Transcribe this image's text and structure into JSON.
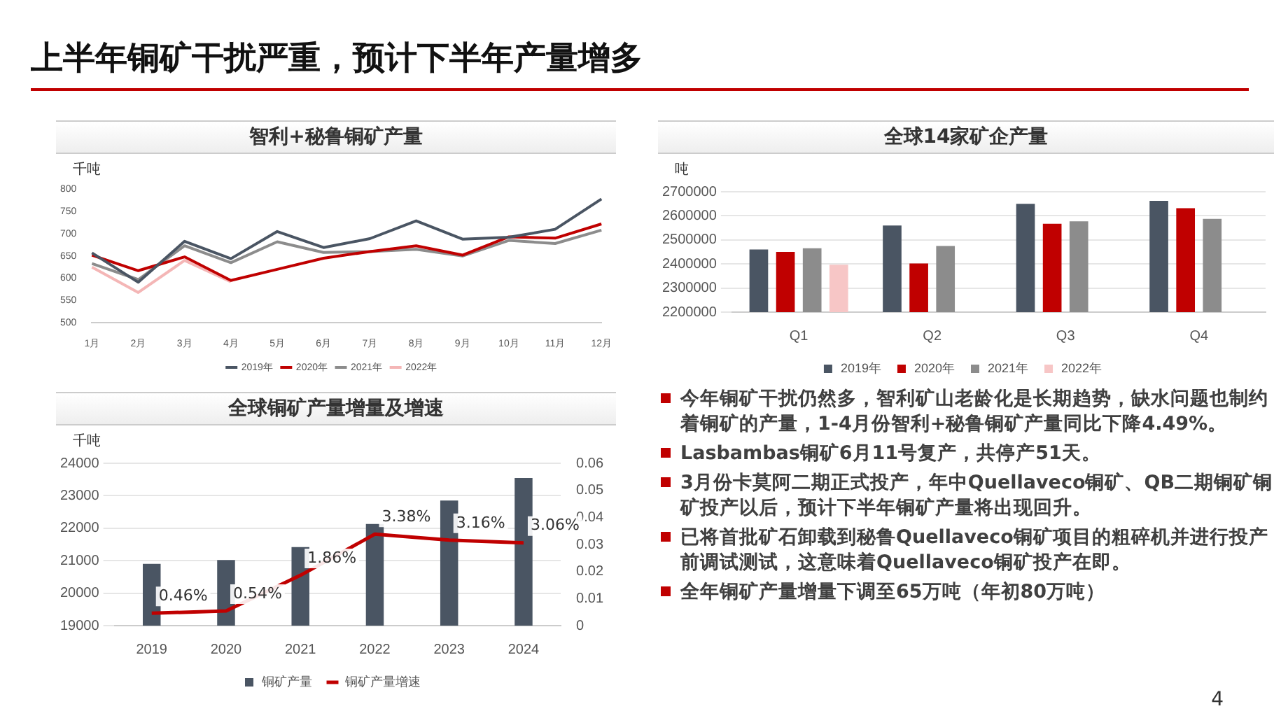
{
  "chart_data": [
    {
      "type": "line",
      "title": "智利+秘鲁铜矿产量",
      "ylabel": "千吨",
      "categories": [
        "1月",
        "2月",
        "3月",
        "4月",
        "5月",
        "6月",
        "7月",
        "8月",
        "9月",
        "10月",
        "11月",
        "12月"
      ],
      "series": [
        {
          "name": "2019年",
          "color": "#4a5563",
          "values": [
            657,
            591,
            683,
            644,
            705,
            669,
            689,
            729,
            688,
            692,
            710,
            778
          ]
        },
        {
          "name": "2020年",
          "color": "#c00000",
          "values": [
            652,
            617,
            648,
            595,
            620,
            645,
            660,
            673,
            652,
            693,
            690,
            722
          ]
        },
        {
          "name": "2021年",
          "color": "#8c8c8c",
          "values": [
            633,
            597,
            673,
            635,
            682,
            658,
            660,
            665,
            650,
            685,
            678,
            708
          ]
        },
        {
          "name": "2022年",
          "color": "#f4b6b6",
          "values": [
            625,
            568,
            640,
            592,
            null,
            null,
            null,
            null,
            null,
            null,
            null,
            null
          ]
        }
      ],
      "ylim": [
        500,
        800
      ],
      "yticks": [
        500,
        550,
        600,
        650,
        700,
        750,
        800
      ],
      "grid": false,
      "legend": "bottom",
      "marker": "none",
      "line_style": "solid"
    },
    {
      "type": "bar",
      "title": "全球14家矿企产量",
      "ylabel": "吨",
      "categories": [
        "Q1",
        "Q2",
        "Q3",
        "Q4"
      ],
      "series": [
        {
          "name": "2019年",
          "color": "#4a5563",
          "values": [
            2460000,
            2560000,
            2650000,
            2662000
          ]
        },
        {
          "name": "2020年",
          "color": "#c00000",
          "values": [
            2450000,
            2402000,
            2567000,
            2632000
          ]
        },
        {
          "name": "2021年",
          "color": "#8c8c8c",
          "values": [
            2465000,
            2475000,
            2577000,
            2587000
          ]
        },
        {
          "name": "2022年",
          "color": "#f7c6c6",
          "values": [
            2397000,
            null,
            null,
            null
          ]
        }
      ],
      "ylim": [
        2200000,
        2700000
      ],
      "yticks": [
        2200000,
        2300000,
        2400000,
        2500000,
        2600000,
        2700000
      ],
      "grid": "y",
      "legend": "bottom"
    },
    {
      "type": "bar",
      "title": "全球铜矿产量增量及增速",
      "ylabel": "千吨",
      "categories": [
        "2019",
        "2020",
        "2021",
        "2022",
        "2023",
        "2024"
      ],
      "series": [
        {
          "name": "铜矿产量",
          "color": "#4a5563",
          "values": [
            20900,
            21020,
            21420,
            22130,
            22850,
            23550
          ]
        },
        {
          "name": "铜矿产量增速",
          "type": "line",
          "axis": "y2",
          "color": "#c00000",
          "values": [
            0.0046,
            0.0054,
            0.0186,
            0.0338,
            0.0316,
            0.0306
          ],
          "value_labels": [
            "0.46%",
            "0.54%",
            "1.86%",
            "3.38%",
            "3.16%",
            "3.06%"
          ]
        }
      ],
      "ylim": [
        19000,
        24000
      ],
      "yticks": [
        19000,
        20000,
        21000,
        22000,
        23000,
        24000
      ],
      "y2lim": [
        0,
        0.06
      ],
      "y2ticks": [
        0,
        0.01,
        0.02,
        0.03,
        0.04,
        0.05,
        0.06
      ],
      "grid": "y",
      "legend": "bottom",
      "marker": "none"
    },
    {
      "type": "other",
      "title": "上半年铜矿干扰严重，预计下半年产量增多",
      "annotations": [
        "今年铜矿干扰仍然多，智利矿山老龄化是长期趋势，缺水问题也制约着铜矿的产量，1-4月份智利+秘鲁铜矿产量同比下降4.49%。",
        "Lasbambas铜矿6月11号复产，共停产51天。",
        "3月份卡莫阿二期正式投产，年中Quellaveco铜矿、QB二期铜矿铜矿投产以后，预计下半年铜矿产量将出现回升。",
        "已将首批矿石卸载到秘鲁Quellaveco铜矿项目的粗碎机并进行投产前调试测试，这意味着Quellaveco铜矿投产在即。",
        "全年铜矿产量增量下调至65万吨（年初80万吨）",
        "4"
      ]
    }
  ]
}
